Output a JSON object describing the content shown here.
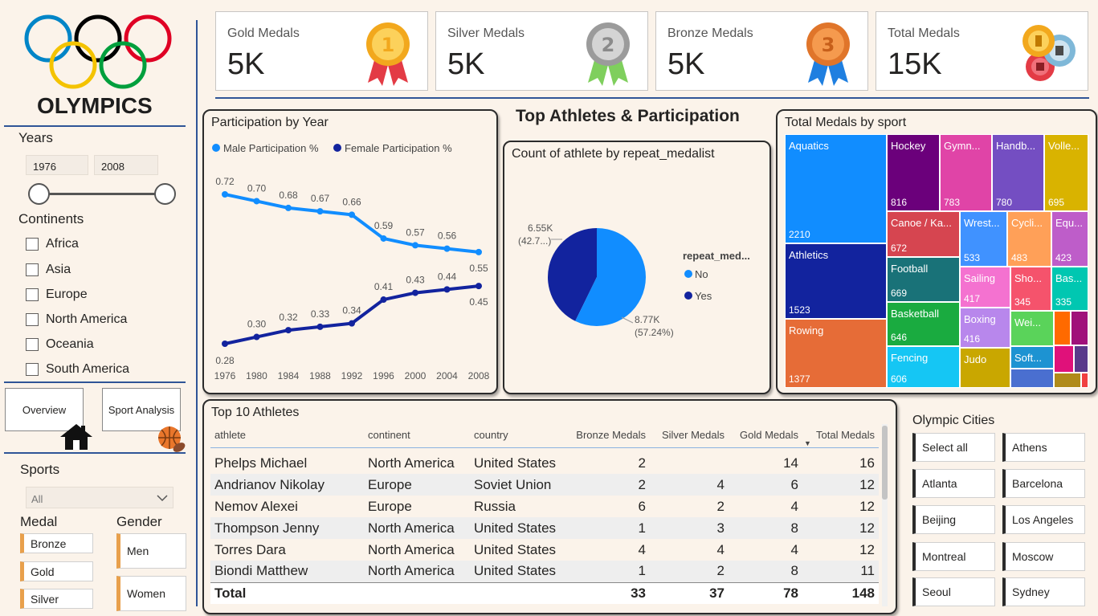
{
  "brand": {
    "title": "OLYMPICS"
  },
  "kpis": [
    {
      "label": "Gold Medals",
      "value": "5K",
      "icon": "gold-medal-icon"
    },
    {
      "label": "Silver Medals",
      "value": "5K",
      "icon": "silver-medal-icon"
    },
    {
      "label": "Bronze Medals",
      "value": "5K",
      "icon": "bronze-medal-icon"
    },
    {
      "label": "Total Medals",
      "value": "15K",
      "icon": "medals-stack-icon"
    }
  ],
  "medal_digits": {
    "gold": "1",
    "silver": "2",
    "bronze": "3"
  },
  "sidebar": {
    "years_label": "Years",
    "year_from": "1976",
    "year_to": "2008",
    "continents_label": "Continents",
    "continents": [
      "Africa",
      "Asia",
      "Europe",
      "North America",
      "Oceania",
      "South America"
    ],
    "nav": {
      "overview": "Overview",
      "sport_analysis": "Sport Analysis"
    },
    "sports_label": "Sports",
    "sports_value": "All",
    "medal_label": "Medal",
    "medals": [
      "Bronze",
      "Gold",
      "Silver"
    ],
    "gender_label": "Gender",
    "genders": [
      "Men",
      "Women"
    ]
  },
  "center_title": "Top Athletes & Participation",
  "participation": {
    "title": "Participation by Year",
    "legend": [
      "Male Participation %",
      "Female Participation %"
    ],
    "colors": [
      "#118dff",
      "#12239e"
    ],
    "x": [
      "1976",
      "1980",
      "1984",
      "1988",
      "1992",
      "1996",
      "2000",
      "2004",
      "2008"
    ],
    "male": [
      0.72,
      0.7,
      0.68,
      0.67,
      0.66,
      0.59,
      0.57,
      0.56,
      0.55
    ],
    "female": [
      0.28,
      0.3,
      0.32,
      0.33,
      0.34,
      0.41,
      0.43,
      0.44,
      0.45
    ],
    "male_labels": [
      "0.72",
      "0.70",
      "0.68",
      "0.67",
      "0.66",
      "0.59",
      "0.57",
      "0.56",
      "0.55"
    ],
    "female_labels": [
      "0.28",
      "0.30",
      "0.32",
      "0.33",
      "0.34",
      "0.41",
      "0.43",
      "0.44",
      "0.45"
    ]
  },
  "repeat": {
    "title": "Count of athlete by repeat_medalist",
    "legend_title": "repeat_med...",
    "legend": [
      "No",
      "Yes"
    ],
    "colors": [
      "#118dff",
      "#12239e"
    ],
    "values": [
      8.77,
      6.55
    ],
    "label_no": "8.77K",
    "label_no_pct": "(57.24%)",
    "label_yes": "6.55K",
    "label_yes_pct": "(42.7...)"
  },
  "treemap": {
    "title": "Total Medals by sport",
    "items": [
      {
        "name": "Aquatics",
        "value": "2210",
        "color": "#118dff"
      },
      {
        "name": "Athletics",
        "value": "1523",
        "color": "#12239e"
      },
      {
        "name": "Rowing",
        "value": "1377",
        "color": "#e66c37"
      },
      {
        "name": "Hockey",
        "value": "816",
        "color": "#6b007b"
      },
      {
        "name": "Gymn...",
        "value": "783",
        "color": "#e044a7"
      },
      {
        "name": "Handb...",
        "value": "780",
        "color": "#744ec2"
      },
      {
        "name": "Volle...",
        "value": "695",
        "color": "#d9b300"
      },
      {
        "name": "Canoe / Ka...",
        "value": "672",
        "color": "#d64550"
      },
      {
        "name": "Football",
        "value": "669",
        "color": "#197278"
      },
      {
        "name": "Basketball",
        "value": "646",
        "color": "#1aab40"
      },
      {
        "name": "Fencing",
        "value": "606",
        "color": "#15c6f4"
      },
      {
        "name": "Wrest...",
        "value": "533",
        "color": "#4092ff"
      },
      {
        "name": "Cycli...",
        "value": "483",
        "color": "#ffa058"
      },
      {
        "name": "Equ...",
        "value": "423",
        "color": "#be5dc9"
      },
      {
        "name": "Sailing",
        "value": "417",
        "color": "#f472d0"
      },
      {
        "name": "Sho...",
        "value": "345",
        "color": "#f5536c"
      },
      {
        "name": "Bas...",
        "value": "335",
        "color": "#00c7b1"
      },
      {
        "name": "Boxing",
        "value": "416",
        "color": "#b887ec"
      },
      {
        "name": "Judo",
        "value": "",
        "color": "#c9a700"
      },
      {
        "name": "Wei...",
        "value": "",
        "color": "#5ad35a"
      },
      {
        "name": "Soft...",
        "value": "",
        "color": "#1d93d2"
      }
    ]
  },
  "athletes": {
    "title": "Top 10 Athletes",
    "columns": [
      "athlete",
      "continent",
      "country",
      "Bronze Medals",
      "Silver Medals",
      "Gold Medals",
      "Total Medals"
    ],
    "rows": [
      [
        "Phelps Michael",
        "North America",
        "United States",
        "2",
        "",
        "14",
        "16"
      ],
      [
        "Andrianov Nikolay",
        "Europe",
        "Soviet Union",
        "2",
        "4",
        "6",
        "12"
      ],
      [
        "Nemov Alexei",
        "Europe",
        "Russia",
        "6",
        "2",
        "4",
        "12"
      ],
      [
        "Thompson Jenny",
        "North America",
        "United States",
        "1",
        "3",
        "8",
        "12"
      ],
      [
        "Torres Dara",
        "North America",
        "United States",
        "4",
        "4",
        "4",
        "12"
      ],
      [
        "Biondi Matthew",
        "North America",
        "United States",
        "1",
        "2",
        "8",
        "11"
      ]
    ],
    "total": [
      "Total",
      "",
      "",
      "33",
      "37",
      "78",
      "148"
    ]
  },
  "cities": {
    "title": "Olympic Cities",
    "items": [
      "Select all",
      "Athens",
      "Atlanta",
      "Barcelona",
      "Beijing",
      "Los Angeles",
      "Montreal",
      "Moscow",
      "Seoul",
      "Sydney"
    ]
  }
}
